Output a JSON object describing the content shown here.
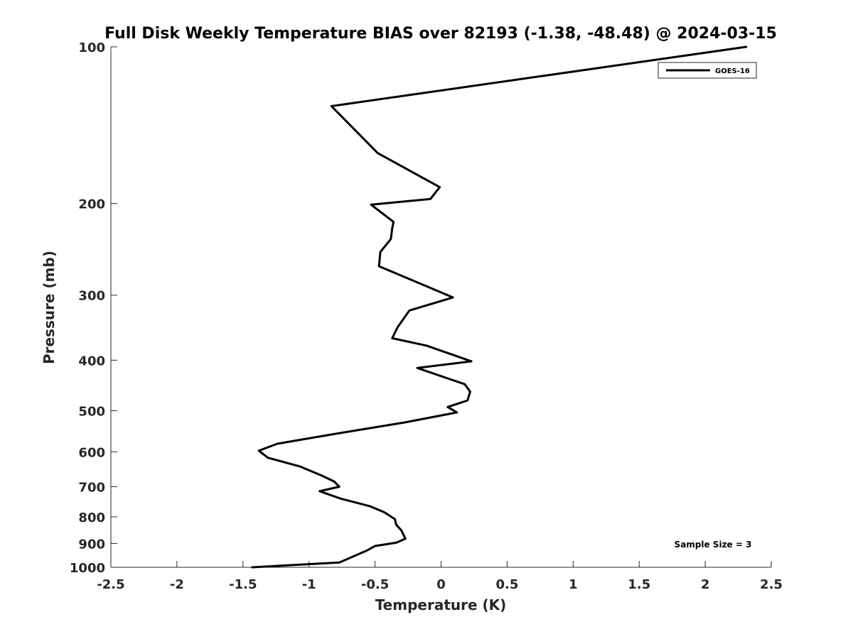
{
  "chart_data": {
    "type": "line",
    "title": "Full Disk Weekly Temperature BIAS over 82193 (-1.38, -48.48) @ 2024-03-15",
    "xlabel": "Temperature (K)",
    "ylabel": "Pressure (mb)",
    "xlim": [
      -2.5,
      2.5
    ],
    "ylim": [
      1000,
      100
    ],
    "y_scale": "log",
    "y_reversed": true,
    "x_ticks": [
      "-2.5",
      "-2",
      "-1.5",
      "-1",
      "-0.5",
      "0",
      "0.5",
      "1",
      "1.5",
      "2",
      "2.5"
    ],
    "x_tick_values": [
      -2.5,
      -2,
      -1.5,
      -1,
      -0.5,
      0,
      0.5,
      1,
      1.5,
      2,
      2.5
    ],
    "y_ticks": [
      "100",
      "200",
      "300",
      "400",
      "500",
      "600",
      "700",
      "800",
      "900",
      "1000"
    ],
    "y_tick_values": [
      100,
      200,
      300,
      400,
      500,
      600,
      700,
      800,
      900,
      1000
    ],
    "grid": false,
    "legend_position": "top-right",
    "series": [
      {
        "name": "GOES-16",
        "color": "#000000",
        "x": [
          2.31,
          -0.83,
          -0.48,
          -0.01,
          -0.08,
          -0.53,
          -0.36,
          -0.37,
          -0.38,
          -0.46,
          -0.47,
          0.09,
          -0.24,
          -0.33,
          -0.37,
          -0.11,
          0.23,
          -0.18,
          0.18,
          0.22,
          0.2,
          0.05,
          0.12,
          -0.28,
          -0.8,
          -1.24,
          -1.38,
          -1.31,
          -1.07,
          -0.9,
          -0.81,
          -0.77,
          -0.92,
          -0.76,
          -0.54,
          -0.43,
          -0.35,
          -0.34,
          -0.3,
          -0.27,
          -0.34,
          -0.5,
          -0.56,
          -0.77,
          -1.43
        ],
        "y": [
          100,
          130,
          160,
          186,
          196,
          201,
          217,
          223,
          234,
          248,
          264,
          303,
          321,
          346,
          363,
          375,
          402,
          414,
          445,
          460,
          478,
          492,
          504,
          527,
          554,
          579,
          597,
          616,
          640,
          667,
          684,
          700,
          714,
          738,
          763,
          784,
          808,
          828,
          850,
          881,
          897,
          910,
          928,
          979,
          1000
        ]
      }
    ],
    "annotations": [
      {
        "text": "Sample Size = 3",
        "position": "bottom-right"
      }
    ]
  }
}
